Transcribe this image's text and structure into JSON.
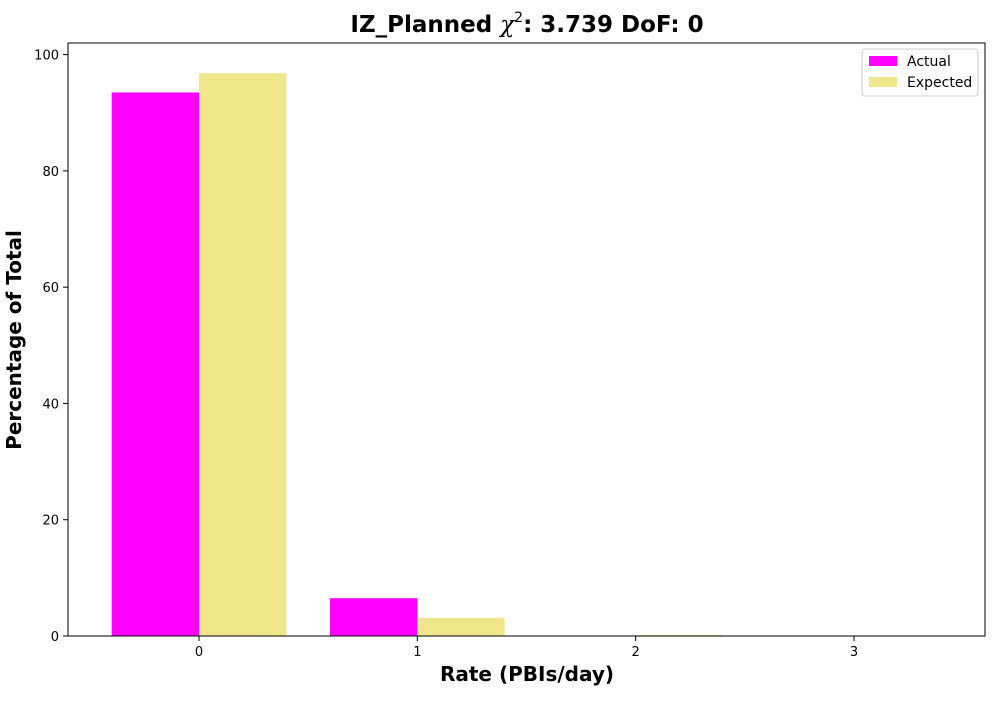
{
  "chart_data": {
    "type": "bar",
    "title_prefix": "IZ_Planned ",
    "title_chi": "χ",
    "title_exp": "2",
    "title_suffix": ": 3.739 DoF: 0",
    "xlabel": "Rate (PBIs/day)",
    "ylabel": "Percentage of Total",
    "categories": [
      "0",
      "1",
      "2",
      "3"
    ],
    "x": [
      0,
      1,
      2,
      3
    ],
    "xlim": [
      -0.6,
      3.6
    ],
    "ylim": [
      0,
      102
    ],
    "yticks": [
      0,
      20,
      40,
      60,
      80,
      100
    ],
    "grid": false,
    "legend_position": "top-right",
    "series": [
      {
        "name": "Actual",
        "color": "#ff00ff",
        "values": [
          93.5,
          6.5,
          0.0,
          0.0
        ]
      },
      {
        "name": "Expected",
        "color": "#f0e68c",
        "values": [
          96.8,
          3.1,
          0.15,
          0.0
        ]
      }
    ]
  }
}
